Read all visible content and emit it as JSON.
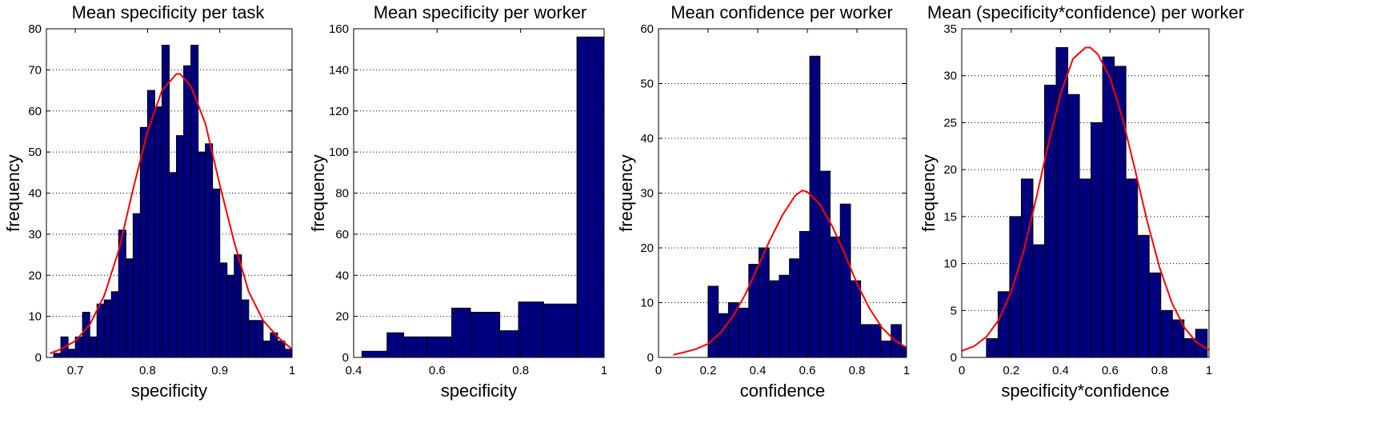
{
  "chart_data": [
    {
      "type": "bar",
      "title": "Mean specificity per task",
      "xlabel": "specificity",
      "ylabel": "frequency",
      "xlim": [
        0.66,
        1.0
      ],
      "ylim": [
        0,
        80
      ],
      "xticks": [
        0.7,
        0.8,
        0.9,
        1
      ],
      "xtick_labels": [
        "0.7",
        "0.8",
        "0.9",
        "1"
      ],
      "yticks": [
        0,
        10,
        20,
        30,
        40,
        50,
        60,
        70,
        80
      ],
      "ytick_labels": [
        "0",
        "10",
        "20",
        "30",
        "40",
        "50",
        "60",
        "70",
        "80"
      ],
      "grid": "y-dotted",
      "bins": {
        "edges": [
          0.66,
          0.67,
          0.68,
          0.69,
          0.7,
          0.71,
          0.72,
          0.73,
          0.74,
          0.75,
          0.76,
          0.77,
          0.78,
          0.79,
          0.8,
          0.81,
          0.82,
          0.83,
          0.84,
          0.85,
          0.86,
          0.87,
          0.88,
          0.89,
          0.9,
          0.91,
          0.92,
          0.93,
          0.94,
          0.95,
          0.96,
          0.97,
          0.98,
          0.99,
          1.0
        ],
        "counts": [
          0,
          1,
          5,
          2,
          5,
          11,
          5,
          13,
          14,
          16,
          31,
          24,
          35,
          56,
          65,
          61,
          76,
          45,
          54,
          71,
          76,
          50,
          52,
          41,
          23,
          20,
          25,
          14,
          9,
          9,
          4,
          6,
          4,
          2
        ]
      },
      "fit": {
        "type": "normal",
        "x": [
          0.665,
          0.68,
          0.7,
          0.72,
          0.74,
          0.76,
          0.78,
          0.8,
          0.82,
          0.84,
          0.845,
          0.86,
          0.88,
          0.9,
          0.92,
          0.94,
          0.96,
          0.98,
          1.0
        ],
        "y": [
          1,
          2,
          4,
          8,
          15,
          26,
          41,
          55,
          65,
          69,
          69,
          66,
          57,
          42,
          28,
          16,
          9,
          5,
          2
        ]
      }
    },
    {
      "type": "bar",
      "title": "Mean specificity per worker",
      "xlabel": "specificity",
      "ylabel": "frequency",
      "xlim": [
        0.4,
        1.0
      ],
      "ylim": [
        0,
        160
      ],
      "xticks": [
        0.4,
        0.6,
        0.8,
        1
      ],
      "xtick_labels": [
        "0.4",
        "0.6",
        "0.8",
        "1"
      ],
      "yticks": [
        0,
        20,
        40,
        60,
        80,
        100,
        120,
        140,
        160
      ],
      "ytick_labels": [
        "0",
        "20",
        "40",
        "60",
        "80",
        "100",
        "120",
        "140",
        "160"
      ],
      "grid": "y-dotted",
      "bins": {
        "edges": [
          0.42,
          0.48,
          0.52,
          0.575,
          0.635,
          0.68,
          0.75,
          0.795,
          0.855,
          0.935,
          1.0
        ],
        "counts": [
          3,
          12,
          10,
          10,
          24,
          22,
          13,
          27,
          26,
          156
        ]
      }
    },
    {
      "type": "bar",
      "title": "Mean confidence per worker",
      "xlabel": "confidence",
      "ylabel": "frequency",
      "xlim": [
        0,
        1
      ],
      "ylim": [
        0,
        60
      ],
      "xticks": [
        0,
        0.2,
        0.4,
        0.6,
        0.8,
        1
      ],
      "xtick_labels": [
        "0",
        "0.2",
        "0.4",
        "0.6",
        "0.8",
        "1"
      ],
      "yticks": [
        0,
        10,
        20,
        30,
        40,
        50,
        60
      ],
      "ytick_labels": [
        "0",
        "10",
        "20",
        "30",
        "40",
        "50",
        "60"
      ],
      "grid": "y-dotted",
      "bins": {
        "edges": [
          0.2,
          0.241,
          0.282,
          0.323,
          0.364,
          0.405,
          0.446,
          0.487,
          0.528,
          0.569,
          0.61,
          0.651,
          0.692,
          0.733,
          0.774,
          0.815,
          0.856,
          0.897,
          0.938,
          0.979,
          1.0
        ],
        "counts": [
          13,
          8,
          10,
          9,
          17,
          20,
          14,
          15,
          18,
          23,
          55,
          34,
          22,
          28,
          14,
          6,
          6,
          3,
          6,
          2
        ]
      },
      "fit": {
        "type": "normal",
        "x": [
          0.06,
          0.1,
          0.15,
          0.2,
          0.25,
          0.3,
          0.35,
          0.4,
          0.45,
          0.5,
          0.55,
          0.58,
          0.6,
          0.65,
          0.7,
          0.75,
          0.8,
          0.85,
          0.9,
          0.95,
          1.0
        ],
        "y": [
          0.5,
          0.9,
          1.5,
          2.5,
          4.5,
          7.5,
          11.5,
          16.5,
          21.5,
          26,
          29.5,
          30.5,
          30.2,
          28,
          24,
          19,
          13.5,
          9,
          5.5,
          3.2,
          1.8
        ]
      }
    },
    {
      "type": "bar",
      "title": "Mean (specificity*confidence) per worker",
      "xlabel": "specificity*confidence",
      "ylabel": "frequency",
      "xlim": [
        0,
        1
      ],
      "ylim": [
        0,
        35
      ],
      "xticks": [
        0,
        0.2,
        0.4,
        0.6,
        0.8,
        1
      ],
      "xtick_labels": [
        "0",
        "0.2",
        "0.4",
        "0.6",
        "0.8",
        "1"
      ],
      "yticks": [
        0,
        5,
        10,
        15,
        20,
        25,
        30,
        35
      ],
      "ytick_labels": [
        "0",
        "5",
        "10",
        "15",
        "20",
        "25",
        "30",
        "35"
      ],
      "grid": "y-dotted",
      "bins": {
        "edges": [
          0.1,
          0.147,
          0.194,
          0.241,
          0.288,
          0.335,
          0.382,
          0.429,
          0.476,
          0.523,
          0.57,
          0.617,
          0.664,
          0.711,
          0.758,
          0.805,
          0.852,
          0.899,
          0.946,
          0.993
        ],
        "counts": [
          2,
          7,
          15,
          19,
          12,
          29,
          33,
          28,
          19,
          25,
          32,
          31,
          19,
          13,
          9,
          5,
          4,
          2,
          3
        ]
      },
      "fit": {
        "type": "normal",
        "x": [
          0.0,
          0.05,
          0.1,
          0.15,
          0.2,
          0.25,
          0.3,
          0.35,
          0.4,
          0.45,
          0.5,
          0.52,
          0.55,
          0.6,
          0.65,
          0.7,
          0.75,
          0.8,
          0.85,
          0.9,
          0.95,
          1.0
        ],
        "y": [
          0.7,
          1.2,
          2.2,
          4.0,
          7.0,
          11.3,
          16.8,
          22.7,
          28.1,
          31.8,
          33.0,
          33.0,
          32.3,
          29.8,
          25.5,
          20.1,
          14.5,
          9.6,
          5.8,
          3.2,
          1.6,
          0.8
        ]
      }
    }
  ],
  "colors": {
    "bar_fill": "#00007f",
    "bar_edge": "#000000",
    "fit_line": "#ff0000",
    "axes": "#000000",
    "grid": "#000000",
    "background": "#ffffff"
  }
}
